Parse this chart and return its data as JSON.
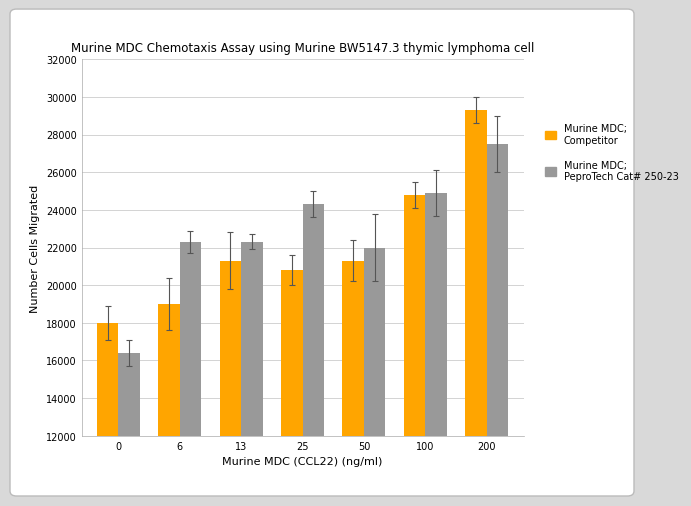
{
  "title": "Murine MDC Chemotaxis Assay using Murine BW5147.3 thymic lymphoma cell",
  "xlabel": "Murine MDC (CCL22) (ng/ml)",
  "ylabel": "Number Cells Migrated",
  "categories": [
    "0",
    "6",
    "13",
    "25",
    "50",
    "100",
    "200"
  ],
  "orange_values": [
    18000,
    19000,
    21300,
    20800,
    21300,
    24800,
    29300
  ],
  "gray_values": [
    16400,
    22300,
    22300,
    24300,
    22000,
    24900,
    27500
  ],
  "orange_errors": [
    900,
    1400,
    1500,
    800,
    1100,
    700,
    700
  ],
  "gray_errors": [
    700,
    600,
    400,
    700,
    1800,
    1200,
    1500
  ],
  "gray_color": "#999999",
  "orange_color": "#FFA500",
  "ylim": [
    12000,
    32000
  ],
  "yticks": [
    12000,
    14000,
    16000,
    18000,
    20000,
    22000,
    24000,
    26000,
    28000,
    30000,
    32000
  ],
  "legend_label_orange": "Murine MDC;\nCompetitor",
  "legend_label_gray": "Murine MDC;\nPeproTech Cat# 250-23",
  "bar_width": 0.35,
  "figure_bg": "#d9d9d9",
  "axes_bg": "#ffffff",
  "title_fontsize": 8.5,
  "label_fontsize": 8,
  "tick_fontsize": 7,
  "legend_fontsize": 7
}
